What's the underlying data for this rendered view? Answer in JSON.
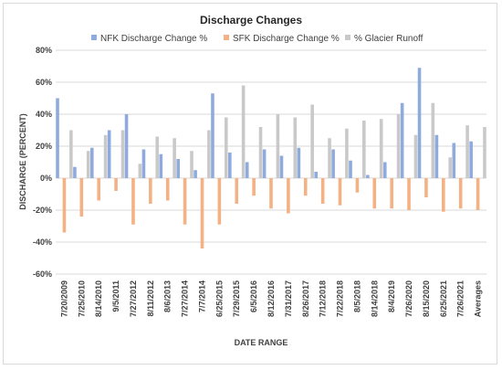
{
  "chart_data": {
    "type": "bar",
    "title": "Discharge  Changes",
    "xlabel": "DATE RANGE",
    "ylabel": "DISCHARGE (PERCENT)",
    "ylim": [
      -60,
      80
    ],
    "yticks": [
      -60,
      -40,
      -20,
      0,
      20,
      40,
      60,
      80
    ],
    "ytick_labels": [
      "-60%",
      "-40%",
      "-20%",
      "0%",
      "20%",
      "40%",
      "60%",
      "80%"
    ],
    "grid": true,
    "legend_position": "top",
    "categories": [
      "7/20/2009",
      "7/25/2010",
      "8/14/2010",
      "9/5/2011",
      "7/27/2012",
      "8/11/2012",
      "8/6/2013",
      "7/27/2014",
      "7/7/2014",
      "6/25/2015",
      "7/29/2015",
      "6/5/2016",
      "8/12/2016",
      "7/31/2017",
      "8/26/2017",
      "7/12/2018",
      "7/22/2018",
      "8/5/2018",
      "8/14/2018",
      "8/4/2019",
      "7/26/2020",
      "8/15/2020",
      "6/25/2021",
      "7/26/2021",
      "Averages"
    ],
    "series": [
      {
        "name": "NFK Discharge Change %",
        "color": "#8faadc",
        "values": [
          50,
          7,
          19,
          30,
          40,
          18,
          15,
          12,
          5,
          53,
          16,
          10,
          18,
          14,
          19,
          4,
          18,
          11,
          2,
          10,
          47,
          69,
          27,
          22,
          23
        ]
      },
      {
        "name": "SFK Discharge Change %",
        "color": "#f4b183",
        "values": [
          -34,
          -24,
          -14,
          -8,
          -29,
          -16,
          -14,
          -29,
          -44,
          -29,
          -16,
          -11,
          -19,
          -22,
          -11,
          -16,
          -17,
          -9,
          -19,
          -19,
          -20,
          -12,
          -21,
          -19,
          -20
        ]
      },
      {
        "name": "% Glacier Runoff",
        "color": "#c9c9c9",
        "values": [
          30,
          17,
          27,
          30,
          9,
          26,
          25,
          17,
          30,
          38,
          58,
          32,
          40,
          38,
          46,
          25,
          31,
          36,
          37,
          40,
          27,
          47,
          13,
          33,
          32
        ]
      }
    ]
  }
}
